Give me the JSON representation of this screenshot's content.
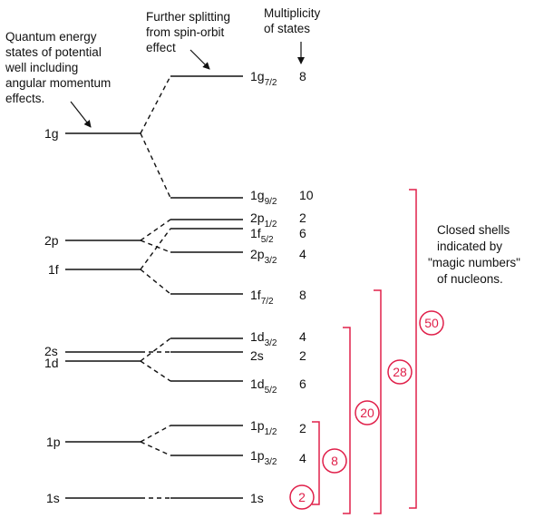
{
  "annotations": {
    "left": [
      "Quantum energy",
      "states of potential",
      "well including",
      "angular momentum",
      "effects."
    ],
    "spin_orbit": [
      "Further splitting",
      "from spin-orbit",
      "effect"
    ],
    "multiplicity_header": [
      "Multiplicity",
      "of states"
    ],
    "closed_shells": [
      "Closed shells",
      "indicated by",
      "\"magic numbers\"",
      "of nucleons."
    ]
  },
  "left_levels": [
    {
      "id": "1g",
      "label": "1g"
    },
    {
      "id": "2p",
      "label": "2p"
    },
    {
      "id": "1f",
      "label": "1f"
    },
    {
      "id": "2s",
      "label": "2s"
    },
    {
      "id": "1d",
      "label": "1d"
    },
    {
      "id": "1p",
      "label": "1p"
    },
    {
      "id": "1s",
      "label": "1s"
    }
  ],
  "right_levels": [
    {
      "id": "1g72",
      "main": "1g",
      "sub": "7/2",
      "mult": "8"
    },
    {
      "id": "1g92",
      "main": "1g",
      "sub": "9/2",
      "mult": "10"
    },
    {
      "id": "2p12",
      "main": "2p",
      "sub": "1/2",
      "mult": "2"
    },
    {
      "id": "1f52",
      "main": "1f",
      "sub": "5/2",
      "mult": "6"
    },
    {
      "id": "2p32",
      "main": "2p",
      "sub": "3/2",
      "mult": "4"
    },
    {
      "id": "1f72",
      "main": "1f",
      "sub": "7/2",
      "mult": "8"
    },
    {
      "id": "1d32",
      "main": "1d",
      "sub": "3/2",
      "mult": "4"
    },
    {
      "id": "2s_r",
      "main": "2s",
      "sub": "",
      "mult": "2"
    },
    {
      "id": "1d52",
      "main": "1d",
      "sub": "5/2",
      "mult": "6"
    },
    {
      "id": "1p12",
      "main": "1p",
      "sub": "1/2",
      "mult": "2"
    },
    {
      "id": "1p32",
      "main": "1p",
      "sub": "3/2",
      "mult": "4"
    },
    {
      "id": "1s_r",
      "main": "1s",
      "sub": "",
      "mult": ""
    }
  ],
  "magic_numbers": [
    "2",
    "8",
    "20",
    "28",
    "50"
  ],
  "colors": {
    "line": "#111111",
    "magic": "#e0204a"
  }
}
